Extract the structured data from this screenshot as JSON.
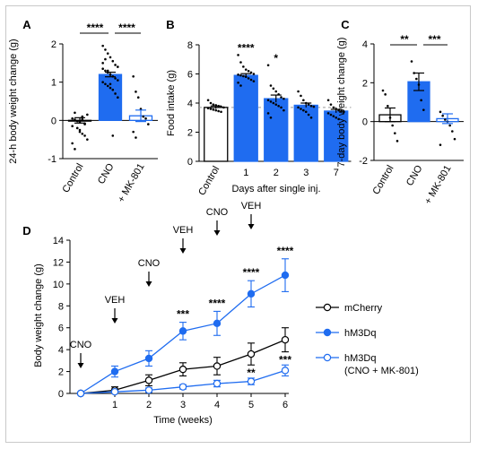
{
  "colors": {
    "blue": "#1f6cf0",
    "axis": "#000000",
    "frame": "#c9c9c9",
    "ref": "#9a9a9a"
  },
  "chart_data": [
    {
      "panel": "A",
      "type": "bar",
      "ylabel": "24-h body weight change (g)",
      "ylim": [
        -1,
        2
      ],
      "yticks": [
        "-1",
        "0",
        "1",
        "2"
      ],
      "categories": [
        "Control",
        "CNO",
        "+ MK-801"
      ],
      "values": [
        0.0,
        1.2,
        0.12
      ],
      "errors": [
        0.07,
        0.06,
        0.15
      ],
      "fill": [
        "white",
        "blue",
        "white"
      ],
      "edge": [
        "black",
        "blue",
        "blue"
      ],
      "points": [
        [
          0.05,
          0.02,
          -0.02,
          -0.05,
          0.1,
          -0.1,
          0.15,
          -0.15,
          0.2,
          -0.2,
          -0.3,
          -0.35,
          -0.4,
          -0.5,
          -0.6,
          -0.75,
          -0.2,
          -0.25,
          0.03,
          -0.08
        ],
        [
          1.95,
          1.85,
          1.75,
          1.65,
          1.55,
          1.45,
          1.4,
          1.35,
          1.3,
          1.25,
          1.2,
          1.15,
          1.1,
          1.05,
          1.0,
          0.95,
          0.9,
          0.85,
          0.8,
          0.7,
          0.6,
          1.5,
          1.6,
          1.3,
          0.95,
          -0.4
        ],
        [
          1.15,
          0.75,
          0.6,
          0.3,
          0.1,
          0.05,
          -0.1,
          -0.3,
          -0.45
        ]
      ],
      "significance": [
        {
          "from": 0,
          "to": 1,
          "label": "****"
        },
        {
          "from": 1,
          "to": 2,
          "label": "****"
        }
      ]
    },
    {
      "panel": "B",
      "type": "bar",
      "ylabel": "Food intake (g)",
      "xlabel": "Days after single inj.",
      "ylim": [
        0,
        8
      ],
      "yticks": [
        "0",
        "2",
        "4",
        "6",
        "8"
      ],
      "categories": [
        "Control",
        "1",
        "2",
        "3",
        "7"
      ],
      "values": [
        3.7,
        5.9,
        4.3,
        3.85,
        3.45
      ],
      "errors": [
        0.1,
        0.12,
        0.25,
        0.15,
        0.12
      ],
      "fill": [
        "white",
        "blue",
        "blue",
        "blue",
        "blue"
      ],
      "edge": [
        "black",
        "blue",
        "blue",
        "blue",
        "blue"
      ],
      "reference_line": 3.7,
      "points": [
        [
          4.2,
          4.0,
          3.9,
          3.85,
          3.8,
          3.75,
          3.7,
          3.65,
          3.6,
          3.55,
          3.5,
          3.45,
          3.4
        ],
        [
          7.3,
          6.8,
          6.5,
          6.3,
          6.2,
          6.1,
          6.0,
          5.95,
          5.9,
          5.85,
          5.8,
          5.7,
          5.6,
          5.5,
          5.4,
          5.2
        ],
        [
          6.6,
          5.2,
          5.0,
          4.8,
          4.6,
          4.4,
          4.3,
          4.2,
          4.1,
          4.0,
          3.9,
          3.8,
          3.7,
          3.5,
          3.3,
          3.0
        ],
        [
          4.8,
          4.5,
          4.2,
          4.0,
          3.9,
          3.8,
          3.75,
          3.7,
          3.6,
          3.5,
          3.4,
          3.2,
          3.0
        ],
        [
          4.2,
          3.9,
          3.7,
          3.6,
          3.5,
          3.45,
          3.4,
          3.3,
          3.2,
          3.1,
          3.0,
          2.9
        ]
      ],
      "significance": [
        {
          "at": 1,
          "label": "****"
        },
        {
          "at": 2,
          "label": "*"
        }
      ]
    },
    {
      "panel": "C",
      "type": "bar",
      "ylabel": "7-day body weight change (g)",
      "ylim": [
        -2,
        4
      ],
      "yticks": [
        "-2",
        "0",
        "2",
        "4"
      ],
      "categories": [
        "Control",
        "CNO",
        "+ MK-801"
      ],
      "values": [
        0.35,
        2.05,
        0.15
      ],
      "errors": [
        0.35,
        0.45,
        0.25
      ],
      "fill": [
        "white",
        "blue",
        "white"
      ],
      "edge": [
        "black",
        "blue",
        "blue"
      ],
      "points": [
        [
          1.6,
          1.4,
          0.8,
          0.2,
          -0.2,
          -0.6,
          -1.0
        ],
        [
          3.1,
          2.5,
          2.2,
          1.9,
          1.1,
          0.6
        ],
        [
          0.5,
          0.3,
          0.1,
          0.0,
          -0.2,
          -0.5,
          -0.9,
          -1.2
        ]
      ],
      "significance": [
        {
          "from": 0,
          "to": 1,
          "label": "**"
        },
        {
          "from": 1,
          "to": 2,
          "label": "***"
        }
      ]
    },
    {
      "panel": "D",
      "type": "line",
      "xlabel": "Time (weeks)",
      "ylabel": "Body weight change (g)",
      "xlim": [
        0,
        6
      ],
      "ylim": [
        0,
        14
      ],
      "xticks": [
        "1",
        "2",
        "3",
        "4",
        "5",
        "6"
      ],
      "yticks": [
        "0",
        "2",
        "4",
        "6",
        "8",
        "10",
        "12",
        "14"
      ],
      "x": [
        0,
        1,
        2,
        3,
        4,
        5,
        6
      ],
      "series": [
        {
          "name": "mCherry",
          "values": [
            0,
            0.3,
            1.2,
            2.2,
            2.5,
            3.6,
            4.9
          ],
          "errors": [
            0,
            0.3,
            0.5,
            0.6,
            0.8,
            1.0,
            1.1
          ],
          "marker": "open",
          "color": "black"
        },
        {
          "name": "hM3Dq",
          "values": [
            0,
            2.0,
            3.2,
            5.7,
            6.4,
            9.1,
            10.8
          ],
          "errors": [
            0,
            0.5,
            0.7,
            0.8,
            1.1,
            1.2,
            1.5
          ],
          "marker": "filled",
          "color": "blue"
        },
        {
          "name": "hM3Dq",
          "name2": "(CNO + MK-801)",
          "values": [
            0,
            0.15,
            0.3,
            0.6,
            0.9,
            1.1,
            2.1
          ],
          "errors": [
            0,
            0.1,
            0.2,
            0.2,
            0.3,
            0.3,
            0.5
          ],
          "marker": "open",
          "color": "blue"
        }
      ],
      "injections": [
        {
          "x": 0,
          "label": "CNO"
        },
        {
          "x": 1,
          "label": "VEH"
        },
        {
          "x": 2,
          "label": "CNO"
        },
        {
          "x": 3,
          "label": "VEH"
        },
        {
          "x": 4,
          "label": "CNO"
        },
        {
          "x": 5,
          "label": "VEH"
        }
      ],
      "significance_upper": [
        {
          "x": 3,
          "label": "***"
        },
        {
          "x": 4,
          "label": "****"
        },
        {
          "x": 5,
          "label": "****"
        },
        {
          "x": 6,
          "label": "****"
        }
      ],
      "significance_lower": [
        {
          "x": 5,
          "label": "**"
        },
        {
          "x": 6,
          "label": "***"
        }
      ]
    }
  ]
}
